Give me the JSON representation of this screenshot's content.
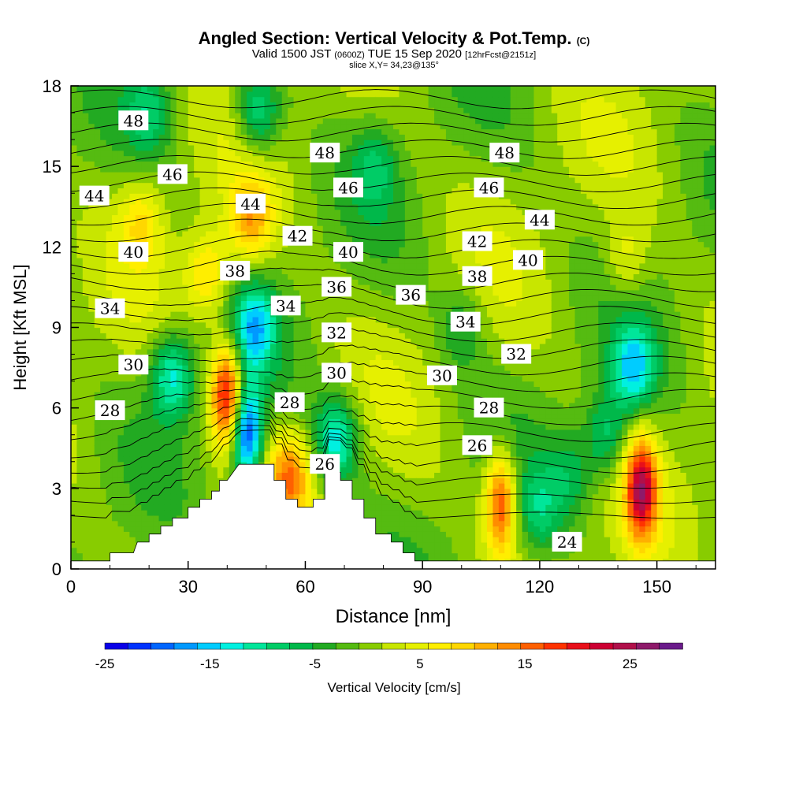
{
  "header": {
    "title": "Angled Section: Vertical Velocity & Pot.Temp.",
    "title_tag": "(C)",
    "subtitle_prefix": "Valid 1500 JST",
    "subtitle_utc": "(0600Z)",
    "subtitle_date": "TUE 15 Sep 2020",
    "subtitle_fcst": "[12hrFcst@2151z]",
    "slice": "slice X,Y= 34,23@135°"
  },
  "colors": {
    "bands": [
      "#0a00e8",
      "#0033ff",
      "#0066ff",
      "#0099ff",
      "#00ccff",
      "#00f0e0",
      "#00e69a",
      "#00cc66",
      "#00b84a",
      "#22aa22",
      "#55bb11",
      "#88cc00",
      "#c8e600",
      "#e6f000",
      "#ffee00",
      "#ffd700",
      "#ffb000",
      "#ff8c00",
      "#ff6000",
      "#ff3300",
      "#e8101a",
      "#cc0033",
      "#b0104a",
      "#8e1a6a",
      "#6a1a8a"
    ],
    "terrain": "#ffffff",
    "contour": "#000000"
  },
  "chart_data": {
    "type": "heatmap",
    "title": "Angled Section: Vertical Velocity & Pot.Temp.",
    "xlabel": "Distance [nm]",
    "ylabel": "Height [Kft MSL]",
    "xlim": [
      0,
      165
    ],
    "ylim": [
      0,
      18
    ],
    "xticks": [
      0,
      30,
      60,
      90,
      120,
      150
    ],
    "yticks": [
      0,
      3,
      6,
      9,
      12,
      15,
      18
    ],
    "colorbar": {
      "label": "Vertical Velocity [cm/s]",
      "tick_labels": [
        -25,
        -15,
        -5,
        5,
        15,
        25
      ],
      "min": -25,
      "max": 30,
      "step": 2.5
    },
    "theta_levels": [
      24,
      25,
      26,
      27,
      28,
      29,
      30,
      31,
      32,
      33,
      34,
      35,
      36,
      37,
      38,
      39,
      40,
      41,
      42,
      43,
      44,
      45,
      46,
      47,
      48,
      49
    ],
    "theta_labels": [
      {
        "x": 16,
        "y": 16.7,
        "text": "48"
      },
      {
        "x": 65,
        "y": 15.5,
        "text": "48"
      },
      {
        "x": 111,
        "y": 15.5,
        "text": "48"
      },
      {
        "x": 26,
        "y": 14.7,
        "text": "46"
      },
      {
        "x": 71,
        "y": 14.2,
        "text": "46"
      },
      {
        "x": 107,
        "y": 14.2,
        "text": "46"
      },
      {
        "x": 6,
        "y": 13.9,
        "text": "44"
      },
      {
        "x": 46,
        "y": 13.6,
        "text": "44"
      },
      {
        "x": 120,
        "y": 13.0,
        "text": "44"
      },
      {
        "x": 58,
        "y": 12.4,
        "text": "42"
      },
      {
        "x": 104,
        "y": 12.2,
        "text": "42"
      },
      {
        "x": 16,
        "y": 11.8,
        "text": "40"
      },
      {
        "x": 71,
        "y": 11.8,
        "text": "40"
      },
      {
        "x": 117,
        "y": 11.5,
        "text": "40"
      },
      {
        "x": 42,
        "y": 11.1,
        "text": "38"
      },
      {
        "x": 104,
        "y": 10.9,
        "text": "38"
      },
      {
        "x": 68,
        "y": 10.5,
        "text": "36"
      },
      {
        "x": 87,
        "y": 10.2,
        "text": "36"
      },
      {
        "x": 10,
        "y": 9.7,
        "text": "34"
      },
      {
        "x": 55,
        "y": 9.8,
        "text": "34"
      },
      {
        "x": 101,
        "y": 9.2,
        "text": "34"
      },
      {
        "x": 68,
        "y": 8.8,
        "text": "32"
      },
      {
        "x": 114,
        "y": 8.0,
        "text": "32"
      },
      {
        "x": 16,
        "y": 7.6,
        "text": "30"
      },
      {
        "x": 68,
        "y": 7.3,
        "text": "30"
      },
      {
        "x": 95,
        "y": 7.2,
        "text": "30"
      },
      {
        "x": 10,
        "y": 5.9,
        "text": "28"
      },
      {
        "x": 56,
        "y": 6.2,
        "text": "28"
      },
      {
        "x": 107,
        "y": 6.0,
        "text": "28"
      },
      {
        "x": 65,
        "y": 3.9,
        "text": "26"
      },
      {
        "x": 104,
        "y": 4.6,
        "text": "26"
      },
      {
        "x": 127,
        "y": 1.0,
        "text": "24"
      }
    ],
    "terrain_profile": [
      [
        0,
        0.3
      ],
      [
        10,
        0.3
      ],
      [
        10,
        0.6
      ],
      [
        16,
        0.6
      ],
      [
        17,
        1.0
      ],
      [
        20,
        1.0
      ],
      [
        20,
        1.3
      ],
      [
        23,
        1.3
      ],
      [
        23,
        1.6
      ],
      [
        26,
        1.6
      ],
      [
        26,
        1.9
      ],
      [
        30,
        1.9
      ],
      [
        30,
        2.3
      ],
      [
        33,
        2.3
      ],
      [
        33,
        2.6
      ],
      [
        36,
        2.6
      ],
      [
        36,
        2.9
      ],
      [
        38,
        2.9
      ],
      [
        38,
        3.3
      ],
      [
        40,
        3.3
      ],
      [
        43,
        3.9
      ],
      [
        52,
        3.9
      ],
      [
        52,
        3.3
      ],
      [
        55,
        3.3
      ],
      [
        55,
        2.6
      ],
      [
        58,
        2.6
      ],
      [
        58,
        2.3
      ],
      [
        62,
        2.3
      ],
      [
        62,
        2.6
      ],
      [
        65,
        2.6
      ],
      [
        65,
        3.6
      ],
      [
        69,
        3.6
      ],
      [
        69,
        3.3
      ],
      [
        72,
        3.3
      ],
      [
        72,
        2.6
      ],
      [
        75,
        2.6
      ],
      [
        75,
        1.9
      ],
      [
        78,
        1.9
      ],
      [
        78,
        1.3
      ],
      [
        82,
        1.3
      ],
      [
        82,
        1.0
      ],
      [
        85,
        1.0
      ],
      [
        85,
        0.6
      ],
      [
        88,
        0.6
      ],
      [
        88,
        0.3
      ],
      [
        165,
        0.3
      ]
    ],
    "vertical_velocity_features": [
      {
        "x": 40,
        "y": 6.5,
        "w_peak": 25
      },
      {
        "x": 45,
        "y": 5.0,
        "w_peak": -25
      },
      {
        "x": 47,
        "y": 9.0,
        "w_peak": -15
      },
      {
        "x": 26,
        "y": 7.2,
        "w_peak": -15
      },
      {
        "x": 146,
        "y": 3.0,
        "w_peak": 25
      },
      {
        "x": 144,
        "y": 7.5,
        "w_peak": -15
      },
      {
        "x": 110,
        "y": 2.5,
        "w_peak": 20
      },
      {
        "x": 68,
        "y": 4.8,
        "w_peak": -15
      },
      {
        "x": 56,
        "y": 3.5,
        "w_peak": 15
      },
      {
        "x": 46,
        "y": 13.0,
        "w_peak": 12
      },
      {
        "x": 48,
        "y": 17.0,
        "w_peak": -12
      },
      {
        "x": 20,
        "y": 17.0,
        "w_peak": -8
      },
      {
        "x": 18,
        "y": 13.0,
        "w_peak": 8
      },
      {
        "x": 35,
        "y": 11.0,
        "w_peak": 10
      },
      {
        "x": 137,
        "y": 5.0,
        "w_peak": -10
      },
      {
        "x": 120,
        "y": 2.2,
        "w_peak": -8
      },
      {
        "x": 128,
        "y": 3.5,
        "w_peak": -6
      },
      {
        "x": 100,
        "y": 9.0,
        "w_peak": -6
      },
      {
        "x": 78,
        "y": 15.0,
        "w_peak": -7
      },
      {
        "x": 142,
        "y": 11.5,
        "w_peak": 6
      }
    ]
  }
}
